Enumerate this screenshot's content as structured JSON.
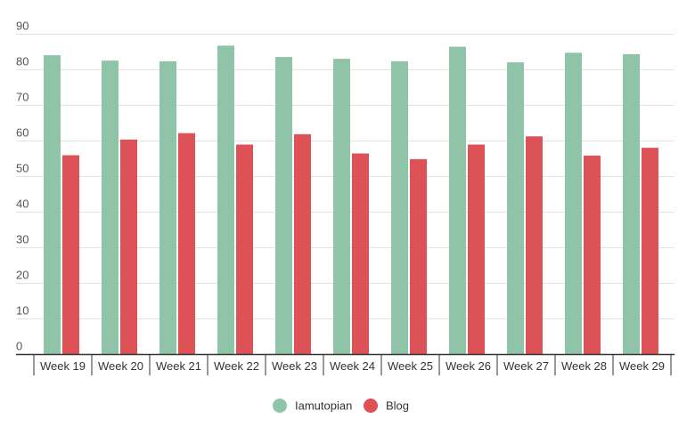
{
  "chart_data": {
    "type": "bar",
    "title": "",
    "xlabel": "",
    "ylabel": "",
    "ylim": [
      0,
      90
    ],
    "yticks": [
      0,
      10,
      20,
      30,
      40,
      50,
      60,
      70,
      80,
      90
    ],
    "grid": true,
    "legend_position": "bottom",
    "categories": [
      "Week 19",
      "Week 20",
      "Week 21",
      "Week 22",
      "Week 23",
      "Week 24",
      "Week 25",
      "Week 26",
      "Week 27",
      "Week 28",
      "Week 29"
    ],
    "series": [
      {
        "name": "Iamutopian",
        "color": "#8fc4a8",
        "values": [
          84.1,
          82.6,
          82.4,
          86.8,
          83.6,
          83.1,
          82.4,
          86.5,
          82.1,
          84.8,
          84.4
        ]
      },
      {
        "name": "Blog",
        "color": "#dc5256",
        "values": [
          56.0,
          60.4,
          62.2,
          59.0,
          61.9,
          56.5,
          54.9,
          59.0,
          61.3,
          55.9,
          58.1
        ]
      }
    ]
  }
}
